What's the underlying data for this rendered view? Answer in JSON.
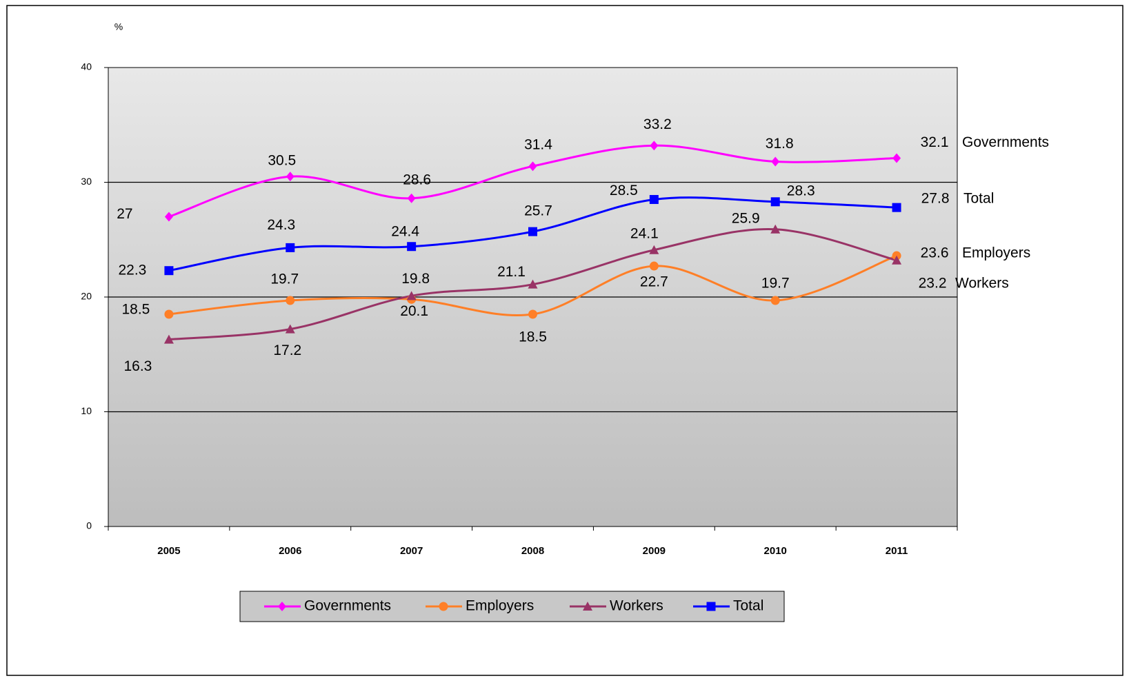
{
  "chart_data": {
    "type": "line",
    "y_axis_label": "%",
    "categories": [
      "2005",
      "2006",
      "2007",
      "2008",
      "2009",
      "2010",
      "2011"
    ],
    "series": [
      {
        "name": "Governments",
        "color": "#ff00ff",
        "marker": "diamond",
        "values": [
          27,
          30.5,
          28.6,
          31.4,
          33.2,
          31.8,
          32.1
        ]
      },
      {
        "name": "Employers",
        "color": "#ff7f27",
        "marker": "circle",
        "values": [
          18.5,
          19.7,
          19.8,
          18.5,
          22.7,
          19.7,
          23.6
        ]
      },
      {
        "name": "Workers",
        "color": "#993366",
        "marker": "triangle",
        "values": [
          16.3,
          17.2,
          20.1,
          21.1,
          24.1,
          25.9,
          23.2
        ]
      },
      {
        "name": "Total",
        "color": "#0000ff",
        "marker": "square",
        "values": [
          22.3,
          24.3,
          24.4,
          25.7,
          28.5,
          28.3,
          27.8
        ]
      }
    ],
    "ylim": [
      0,
      40
    ],
    "yticks": [
      0,
      10,
      20,
      30,
      40
    ],
    "grid": true,
    "smooth": true,
    "legend": "bottom"
  }
}
